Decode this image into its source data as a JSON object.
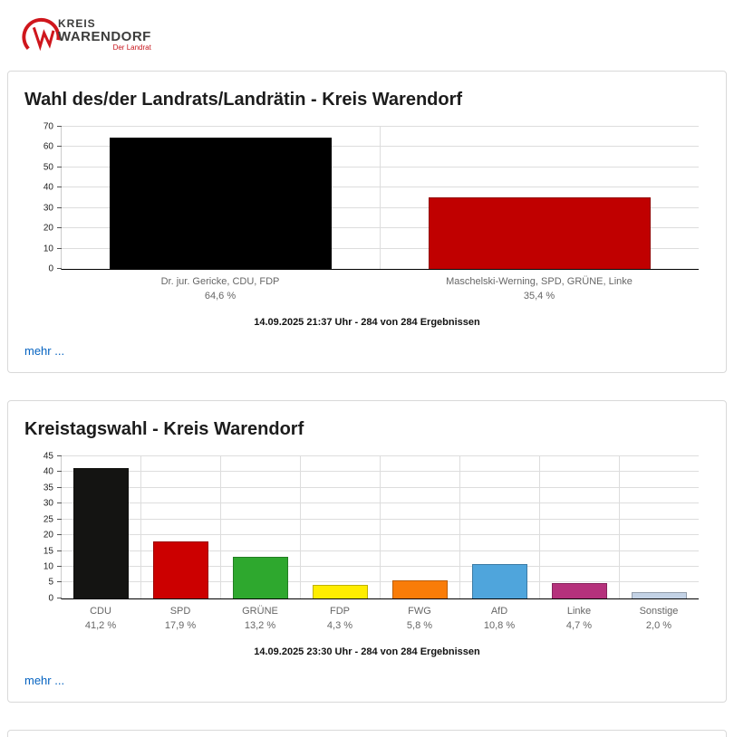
{
  "logo": {
    "line1": "KREIS",
    "line2": "WARENDORF",
    "subtitle": "Der Landrat"
  },
  "cards": [
    {
      "title": "Wahl des/der Landrats/Landrätin - Kreis Warendorf",
      "status": "14.09.2025 21:37 Uhr - 284 von 284 Ergebnissen",
      "more_label": "mehr ...",
      "chart_data": {
        "type": "bar",
        "categories": [
          "Dr. jur. Gericke, CDU, FDP",
          "Maschelski-Werning, SPD, GRÜNE, Linke"
        ],
        "values": [
          64.6,
          35.4
        ],
        "value_labels": [
          "64,6 %",
          "35,4 %"
        ],
        "colors": [
          "#000000",
          "#c00000"
        ],
        "ylim": [
          0,
          70
        ],
        "yticks": [
          0,
          10,
          20,
          30,
          40,
          50,
          60,
          70
        ],
        "grid": true,
        "legend": "none"
      }
    },
    {
      "title": "Kreistagswahl - Kreis Warendorf",
      "status": "14.09.2025 23:30 Uhr - 284 von 284 Ergebnissen",
      "more_label": "mehr ...",
      "chart_data": {
        "type": "bar",
        "categories": [
          "CDU",
          "SPD",
          "GRÜNE",
          "FDP",
          "FWG",
          "AfD",
          "Linke",
          "Sonstige"
        ],
        "values": [
          41.2,
          17.9,
          13.2,
          4.3,
          5.8,
          10.8,
          4.7,
          2.0
        ],
        "value_labels": [
          "41,2 %",
          "17,9 %",
          "13,2 %",
          "4,3 %",
          "5,8 %",
          "10,8 %",
          "4,7 %",
          "2,0 %"
        ],
        "colors": [
          "#141412",
          "#cc0000",
          "#2ea82e",
          "#ffed00",
          "#f97c08",
          "#4fa5dc",
          "#b5317c",
          "#c3d2e5"
        ],
        "ylim": [
          0,
          45
        ],
        "yticks": [
          0,
          5,
          10,
          15,
          20,
          25,
          30,
          35,
          40,
          45
        ],
        "grid": true,
        "legend": "none"
      }
    }
  ]
}
